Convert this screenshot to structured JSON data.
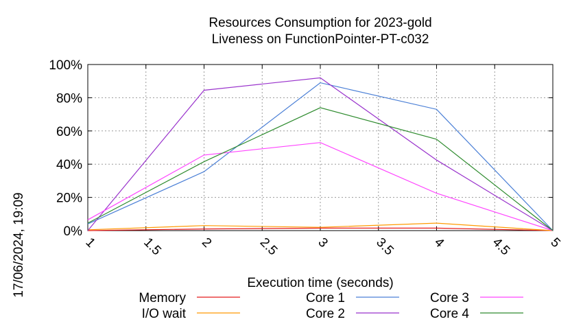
{
  "chart_data": {
    "type": "line",
    "title_line1": "Resources Consumption for 2023-gold",
    "title_line2": "Liveness on FunctionPointer-PT-c032",
    "xlabel": "Execution time (seconds)",
    "timestamp": "17/06/2024, 19:09",
    "xlim": [
      1,
      5
    ],
    "ylim": [
      0,
      100
    ],
    "x_ticks": [
      {
        "v": 1,
        "label": "1"
      },
      {
        "v": 1.5,
        "label": "1.5"
      },
      {
        "v": 2,
        "label": "2"
      },
      {
        "v": 2.5,
        "label": "2.5"
      },
      {
        "v": 3,
        "label": "3"
      },
      {
        "v": 3.5,
        "label": "3.5"
      },
      {
        "v": 4,
        "label": "4"
      },
      {
        "v": 4.5,
        "label": "4.5"
      },
      {
        "v": 5,
        "label": "5"
      }
    ],
    "y_ticks": [
      {
        "v": 0,
        "label": "0%"
      },
      {
        "v": 20,
        "label": "20%"
      },
      {
        "v": 40,
        "label": "40%"
      },
      {
        "v": 60,
        "label": "60%"
      },
      {
        "v": 80,
        "label": "80%"
      },
      {
        "v": 100,
        "label": "100%"
      }
    ],
    "grid": true,
    "legend_position": "bottom",
    "series": [
      {
        "name": "Memory",
        "color": "#e41a1c",
        "points": [
          [
            1,
            0
          ],
          [
            2,
            1
          ],
          [
            3,
            1.5
          ],
          [
            4,
            1.5
          ],
          [
            5,
            0
          ]
        ]
      },
      {
        "name": "I/O wait",
        "color": "#ff9900",
        "points": [
          [
            1,
            0.5
          ],
          [
            2,
            3
          ],
          [
            3,
            2
          ],
          [
            4,
            4.5
          ],
          [
            5,
            0
          ]
        ]
      },
      {
        "name": "Core 1",
        "color": "#4a7fd6",
        "points": [
          [
            1,
            4
          ],
          [
            2,
            35.5
          ],
          [
            3,
            89
          ],
          [
            4,
            73
          ],
          [
            5,
            0
          ]
        ]
      },
      {
        "name": "Core 2",
        "color": "#9932cc",
        "points": [
          [
            1,
            0
          ],
          [
            2,
            84.5
          ],
          [
            3,
            92
          ],
          [
            4,
            42.5
          ],
          [
            5,
            0
          ]
        ]
      },
      {
        "name": "Core 3",
        "color": "#ff44ff",
        "points": [
          [
            1,
            6.5
          ],
          [
            2,
            45.5
          ],
          [
            3,
            53
          ],
          [
            4,
            22.5
          ],
          [
            5,
            0
          ]
        ]
      },
      {
        "name": "Core 4",
        "color": "#2e8b2e",
        "points": [
          [
            1,
            4.5
          ],
          [
            2,
            41.5
          ],
          [
            3,
            74
          ],
          [
            4,
            55
          ],
          [
            5,
            0
          ]
        ]
      }
    ]
  }
}
